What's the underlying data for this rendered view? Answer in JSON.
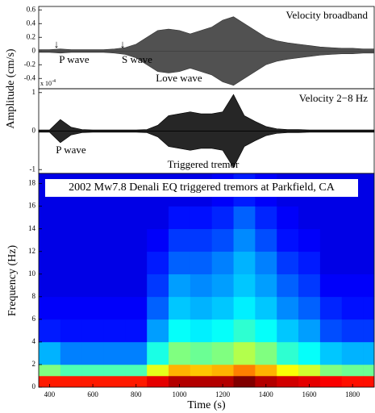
{
  "chart_data": [
    {
      "type": "area",
      "annotations": [
        "Velocity broadband",
        "P wave",
        "S wave",
        "Love wave"
      ],
      "ylabel": "Amplitude (cm/s)",
      "x": [
        350,
        400,
        450,
        500,
        550,
        600,
        650,
        700,
        750,
        800,
        850,
        900,
        950,
        1000,
        1050,
        1100,
        1150,
        1200,
        1250,
        1300,
        1350,
        1400,
        1450,
        1500,
        1550,
        1600,
        1650,
        1700,
        1750,
        1800,
        1850,
        1900
      ],
      "series": [
        {
          "color": "#333333",
          "values": [
            0.02,
            0.02,
            0.03,
            0.02,
            0.02,
            0.02,
            0.02,
            0.03,
            0.05,
            0.1,
            0.2,
            0.3,
            0.32,
            0.3,
            0.25,
            0.3,
            0.35,
            0.45,
            0.5,
            0.4,
            0.3,
            0.2,
            0.15,
            0.12,
            0.1,
            0.08,
            0.06,
            0.05,
            0.04,
            0.04,
            0.03,
            0.03
          ]
        }
      ],
      "xlim": [
        350,
        1900
      ],
      "ylim": [
        -0.55,
        0.65
      ],
      "yticks": [
        0.6,
        0.4,
        0.2,
        0,
        -0.2,
        -0.4
      ]
    },
    {
      "type": "area",
      "annotations": [
        "Velocity 2−8 Hz",
        "P wave",
        "Triggered tremor"
      ],
      "multiplier": {
        "base": "x 10",
        "exponent": "-4"
      },
      "x": [
        350,
        400,
        450,
        500,
        550,
        600,
        650,
        700,
        750,
        800,
        850,
        900,
        950,
        1000,
        1050,
        1100,
        1150,
        1200,
        1250,
        1300,
        1350,
        1400,
        1450,
        1500,
        1550,
        1600,
        1650,
        1700,
        1750,
        1800,
        1850,
        1900
      ],
      "series": [
        {
          "color": "#000000",
          "values": [
            0.03,
            0.03,
            0.3,
            0.1,
            0.04,
            0.03,
            0.03,
            0.03,
            0.03,
            0.03,
            0.04,
            0.15,
            0.4,
            0.45,
            0.5,
            0.45,
            0.45,
            0.5,
            0.95,
            0.4,
            0.25,
            0.12,
            0.06,
            0.04,
            0.04,
            0.03,
            0.03,
            0.03,
            0.03,
            0.03,
            0.03,
            0.03
          ]
        }
      ],
      "xlim": [
        350,
        1900
      ],
      "ylim": [
        -1.1,
        1.1
      ],
      "yticks": [
        1,
        0,
        -1
      ]
    },
    {
      "type": "heatmap",
      "title": "2002 Mw7.8 Denali EQ triggered tremors at Parkfield, CA",
      "xlabel": "Time (s)",
      "ylabel": "Frequency (Hz)",
      "time_bins": [
        350,
        450,
        550,
        650,
        750,
        850,
        950,
        1050,
        1150,
        1250,
        1350,
        1450,
        1550,
        1650,
        1750,
        1850,
        1900
      ],
      "frequency_bins": [
        0,
        1,
        2,
        4,
        6,
        8,
        10,
        12,
        14,
        16,
        18.9
      ],
      "color_range": [
        0,
        1
      ],
      "values": [
        [
          0.85,
          0.5,
          0.3,
          0.15,
          0.12,
          0.1,
          0.1,
          0.1,
          0.1,
          0.1
        ],
        [
          0.85,
          0.45,
          0.25,
          0.14,
          0.12,
          0.1,
          0.1,
          0.1,
          0.1,
          0.1
        ],
        [
          0.85,
          0.45,
          0.25,
          0.14,
          0.12,
          0.1,
          0.1,
          0.1,
          0.1,
          0.1
        ],
        [
          0.85,
          0.45,
          0.25,
          0.14,
          0.12,
          0.1,
          0.1,
          0.1,
          0.1,
          0.1
        ],
        [
          0.85,
          0.45,
          0.25,
          0.14,
          0.12,
          0.1,
          0.1,
          0.1,
          0.1,
          0.1
        ],
        [
          0.9,
          0.6,
          0.4,
          0.28,
          0.22,
          0.18,
          0.15,
          0.12,
          0.1,
          0.1
        ],
        [
          0.95,
          0.7,
          0.5,
          0.38,
          0.32,
          0.28,
          0.22,
          0.18,
          0.14,
          0.1
        ],
        [
          0.95,
          0.68,
          0.48,
          0.36,
          0.3,
          0.26,
          0.22,
          0.18,
          0.14,
          0.1
        ],
        [
          0.95,
          0.7,
          0.5,
          0.38,
          0.32,
          0.28,
          0.25,
          0.2,
          0.16,
          0.12
        ],
        [
          1,
          0.75,
          0.55,
          0.42,
          0.36,
          0.32,
          0.3,
          0.26,
          0.22,
          0.15
        ],
        [
          0.95,
          0.7,
          0.5,
          0.38,
          0.32,
          0.28,
          0.25,
          0.2,
          0.16,
          0.12
        ],
        [
          0.92,
          0.62,
          0.42,
          0.32,
          0.26,
          0.22,
          0.18,
          0.14,
          0.12,
          0.1
        ],
        [
          0.9,
          0.58,
          0.38,
          0.28,
          0.22,
          0.18,
          0.15,
          0.12,
          0.1,
          0.1
        ],
        [
          0.88,
          0.5,
          0.32,
          0.2,
          0.16,
          0.12,
          0.1,
          0.1,
          0.1,
          0.1
        ],
        [
          0.86,
          0.48,
          0.3,
          0.18,
          0.14,
          0.12,
          0.1,
          0.1,
          0.1,
          0.1
        ],
        [
          0.86,
          0.48,
          0.3,
          0.18,
          0.14,
          0.12,
          0.1,
          0.1,
          0.1,
          0.1
        ]
      ],
      "xlim": [
        350,
        1900
      ],
      "ylim": [
        0,
        18.9
      ],
      "xticks": [
        400,
        600,
        800,
        1000,
        1200,
        1400,
        1600,
        1800
      ],
      "yticks": [
        0,
        2,
        4,
        6,
        8,
        10,
        12,
        14,
        16,
        18
      ]
    }
  ]
}
